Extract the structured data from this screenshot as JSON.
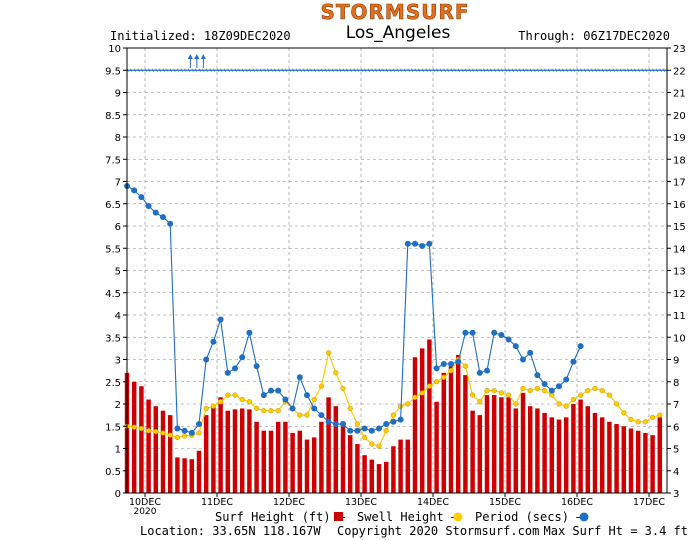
{
  "header": {
    "logo": "STORMSURF",
    "initialized": "Initialized: 18Z09DEC2020",
    "location_title": "Los_Angeles",
    "through": "Through: 06Z17DEC2020"
  },
  "footer": {
    "legend_surf": "Surf Height (ft) –",
    "legend_swell": "Swell Height –",
    "legend_period": "Period (secs) –",
    "location": "Location: 33.65N 118.167W",
    "copyright": "Copyright 2020 Stormsurf.com",
    "max_surf": "Max Surf Ht = 3.4 ft"
  },
  "colors": {
    "surf": "#cc0000",
    "swell": "#ffcc00",
    "period": "#1f6fc4",
    "direction": "#1f6fc4",
    "grid": "#888888",
    "logo": "#e07020"
  },
  "chart_data": {
    "type": "bar",
    "left_axis": {
      "ylim": [
        0,
        10
      ],
      "ticks": [
        "0",
        "0.5",
        "1",
        "1.5",
        "2",
        "2.5",
        "3",
        "3.5",
        "4",
        "4.5",
        "5",
        "5.5",
        "6",
        "6.5",
        "7",
        "7.5",
        "8",
        "8.5",
        "9",
        "9.5",
        "10"
      ]
    },
    "right_axis": {
      "ylim": [
        3,
        23
      ],
      "ticks": [
        "3",
        "4",
        "5",
        "6",
        "7",
        "8",
        "9",
        "10",
        "11",
        "12",
        "13",
        "14",
        "15",
        "16",
        "17",
        "18",
        "19",
        "20",
        "21",
        "22",
        "23"
      ]
    },
    "x_labels": [
      {
        "day": 10.0,
        "label": "10DEC",
        "sub": "2020"
      },
      {
        "day": 11.0,
        "label": "11DEC",
        "sub": ""
      },
      {
        "day": 12.0,
        "label": "12DEC",
        "sub": ""
      },
      {
        "day": 13.0,
        "label": "13DEC",
        "sub": ""
      },
      {
        "day": 14.0,
        "label": "14DEC",
        "sub": ""
      },
      {
        "day": 15.0,
        "label": "15DEC",
        "sub": ""
      },
      {
        "day": 16.0,
        "label": "16DEC",
        "sub": ""
      },
      {
        "day": 17.0,
        "label": "17DEC",
        "sub": ""
      }
    ],
    "x_range": [
      9.75,
      17.25
    ],
    "surf_height": [
      [
        9.75,
        2.7
      ],
      [
        9.85,
        2.5
      ],
      [
        9.95,
        2.4
      ],
      [
        10.05,
        2.1
      ],
      [
        10.15,
        1.95
      ],
      [
        10.25,
        1.85
      ],
      [
        10.35,
        1.75
      ],
      [
        10.45,
        0.8
      ],
      [
        10.55,
        0.78
      ],
      [
        10.65,
        0.76
      ],
      [
        10.75,
        0.95
      ],
      [
        10.85,
        1.75
      ],
      [
        10.95,
        1.95
      ],
      [
        11.05,
        2.15
      ],
      [
        11.15,
        1.85
      ],
      [
        11.25,
        1.88
      ],
      [
        11.35,
        1.9
      ],
      [
        11.45,
        1.88
      ],
      [
        11.55,
        1.6
      ],
      [
        11.65,
        1.4
      ],
      [
        11.75,
        1.4
      ],
      [
        11.85,
        1.6
      ],
      [
        11.95,
        1.6
      ],
      [
        12.05,
        1.35
      ],
      [
        12.15,
        1.4
      ],
      [
        12.25,
        1.2
      ],
      [
        12.35,
        1.25
      ],
      [
        12.45,
        1.6
      ],
      [
        12.55,
        2.15
      ],
      [
        12.65,
        1.95
      ],
      [
        12.75,
        1.6
      ],
      [
        12.85,
        1.3
      ],
      [
        12.95,
        1.1
      ],
      [
        13.05,
        0.85
      ],
      [
        13.15,
        0.75
      ],
      [
        13.25,
        0.65
      ],
      [
        13.35,
        0.7
      ],
      [
        13.45,
        1.05
      ],
      [
        13.55,
        1.2
      ],
      [
        13.65,
        1.2
      ],
      [
        13.75,
        3.05
      ],
      [
        13.85,
        3.25
      ],
      [
        13.95,
        3.45
      ],
      [
        14.05,
        2.05
      ],
      [
        14.15,
        2.7
      ],
      [
        14.25,
        2.9
      ],
      [
        14.35,
        3.1
      ],
      [
        14.45,
        2.65
      ],
      [
        14.55,
        1.85
      ],
      [
        14.65,
        1.75
      ],
      [
        14.75,
        2.2
      ],
      [
        14.85,
        2.2
      ],
      [
        14.95,
        2.15
      ],
      [
        15.05,
        2.15
      ],
      [
        15.15,
        1.9
      ],
      [
        15.25,
        2.25
      ],
      [
        15.35,
        1.95
      ],
      [
        15.45,
        1.9
      ],
      [
        15.55,
        1.8
      ],
      [
        15.65,
        1.7
      ],
      [
        15.75,
        1.65
      ],
      [
        15.85,
        1.7
      ],
      [
        15.95,
        2.0
      ],
      [
        16.05,
        2.1
      ],
      [
        16.15,
        1.95
      ],
      [
        16.25,
        1.8
      ],
      [
        16.35,
        1.7
      ],
      [
        16.45,
        1.6
      ],
      [
        16.55,
        1.55
      ],
      [
        16.65,
        1.5
      ],
      [
        16.75,
        1.45
      ],
      [
        16.85,
        1.4
      ],
      [
        16.95,
        1.35
      ],
      [
        17.05,
        1.3
      ],
      [
        17.15,
        1.7
      ]
    ],
    "swell_height": [
      [
        9.75,
        1.5
      ],
      [
        9.85,
        1.48
      ],
      [
        9.95,
        1.45
      ],
      [
        10.05,
        1.4
      ],
      [
        10.15,
        1.38
      ],
      [
        10.25,
        1.35
      ],
      [
        10.35,
        1.3
      ],
      [
        10.45,
        1.25
      ],
      [
        10.55,
        1.28
      ],
      [
        10.65,
        1.3
      ],
      [
        10.75,
        1.35
      ],
      [
        10.85,
        1.9
      ],
      [
        10.95,
        1.95
      ],
      [
        11.05,
        2.05
      ],
      [
        11.15,
        2.2
      ],
      [
        11.25,
        2.2
      ],
      [
        11.35,
        2.1
      ],
      [
        11.45,
        2.05
      ],
      [
        11.55,
        1.9
      ],
      [
        11.65,
        1.85
      ],
      [
        11.75,
        1.85
      ],
      [
        11.85,
        1.85
      ],
      [
        11.95,
        2.05
      ],
      [
        12.05,
        1.9
      ],
      [
        12.15,
        1.75
      ],
      [
        12.25,
        1.75
      ],
      [
        12.35,
        2.1
      ],
      [
        12.45,
        2.4
      ],
      [
        12.55,
        3.15
      ],
      [
        12.65,
        2.7
      ],
      [
        12.75,
        2.35
      ],
      [
        12.85,
        1.9
      ],
      [
        12.95,
        1.55
      ],
      [
        13.05,
        1.25
      ],
      [
        13.15,
        1.1
      ],
      [
        13.25,
        1.05
      ],
      [
        13.35,
        1.4
      ],
      [
        13.45,
        1.75
      ],
      [
        13.55,
        1.95
      ],
      [
        13.65,
        2.0
      ],
      [
        13.75,
        2.15
      ],
      [
        13.85,
        2.25
      ],
      [
        13.95,
        2.4
      ],
      [
        14.05,
        2.5
      ],
      [
        14.15,
        2.6
      ],
      [
        14.25,
        2.75
      ],
      [
        14.35,
        3.0
      ],
      [
        14.45,
        2.85
      ],
      [
        14.55,
        2.2
      ],
      [
        14.65,
        2.05
      ],
      [
        14.75,
        2.3
      ],
      [
        14.85,
        2.3
      ],
      [
        14.95,
        2.25
      ],
      [
        15.05,
        2.2
      ],
      [
        15.15,
        2.0
      ],
      [
        15.25,
        2.35
      ],
      [
        15.35,
        2.3
      ],
      [
        15.45,
        2.35
      ],
      [
        15.55,
        2.3
      ],
      [
        15.65,
        2.2
      ],
      [
        15.75,
        2.0
      ],
      [
        15.85,
        1.95
      ],
      [
        15.95,
        2.1
      ],
      [
        16.05,
        2.2
      ],
      [
        16.15,
        2.3
      ],
      [
        16.25,
        2.35
      ],
      [
        16.35,
        2.3
      ],
      [
        16.45,
        2.2
      ],
      [
        16.55,
        2.0
      ],
      [
        16.65,
        1.8
      ],
      [
        16.75,
        1.65
      ],
      [
        16.85,
        1.6
      ],
      [
        16.95,
        1.6
      ],
      [
        17.05,
        1.7
      ],
      [
        17.15,
        1.75
      ]
    ],
    "period": [
      [
        9.75,
        16.8
      ],
      [
        9.85,
        16.6
      ],
      [
        9.95,
        16.3
      ],
      [
        10.05,
        15.9
      ],
      [
        10.15,
        15.6
      ],
      [
        10.25,
        15.4
      ],
      [
        10.35,
        15.1
      ],
      [
        10.45,
        5.9
      ],
      [
        10.55,
        5.8
      ],
      [
        10.65,
        5.7
      ],
      [
        10.75,
        6.1
      ],
      [
        10.85,
        9.0
      ],
      [
        10.95,
        9.8
      ],
      [
        11.05,
        10.8
      ],
      [
        11.15,
        8.4
      ],
      [
        11.25,
        8.6
      ],
      [
        11.35,
        9.1
      ],
      [
        11.45,
        10.2
      ],
      [
        11.55,
        8.7
      ],
      [
        11.65,
        7.4
      ],
      [
        11.75,
        7.6
      ],
      [
        11.85,
        7.6
      ],
      [
        11.95,
        7.2
      ],
      [
        12.05,
        6.8
      ],
      [
        12.15,
        8.2
      ],
      [
        12.25,
        7.4
      ],
      [
        12.35,
        6.8
      ],
      [
        12.45,
        6.5
      ],
      [
        12.55,
        6.2
      ],
      [
        12.65,
        6.1
      ],
      [
        12.75,
        6.1
      ],
      [
        12.85,
        5.8
      ],
      [
        12.95,
        5.8
      ],
      [
        13.05,
        5.9
      ],
      [
        13.15,
        5.8
      ],
      [
        13.25,
        5.9
      ],
      [
        13.35,
        6.1
      ],
      [
        13.45,
        6.2
      ],
      [
        13.55,
        6.3
      ],
      [
        13.65,
        14.2
      ],
      [
        13.75,
        14.2
      ],
      [
        13.85,
        14.1
      ],
      [
        13.95,
        14.2
      ],
      [
        14.05,
        8.6
      ],
      [
        14.15,
        8.8
      ],
      [
        14.25,
        8.8
      ],
      [
        14.35,
        8.9
      ],
      [
        14.45,
        10.2
      ],
      [
        14.55,
        10.2
      ],
      [
        14.65,
        8.4
      ],
      [
        14.75,
        8.5
      ],
      [
        14.85,
        10.2
      ],
      [
        14.95,
        10.1
      ],
      [
        15.05,
        9.9
      ],
      [
        15.15,
        9.6
      ],
      [
        15.25,
        9.0
      ],
      [
        15.35,
        9.3
      ],
      [
        15.45,
        8.3
      ],
      [
        15.55,
        7.9
      ],
      [
        15.65,
        7.6
      ],
      [
        15.75,
        7.8
      ],
      [
        15.85,
        8.1
      ],
      [
        15.95,
        8.9
      ],
      [
        16.05,
        9.6
      ]
    ],
    "direction_arrows": [
      [
        10.63,
        22.1
      ],
      [
        10.72,
        22.1
      ],
      [
        10.81,
        22.1
      ]
    ]
  }
}
